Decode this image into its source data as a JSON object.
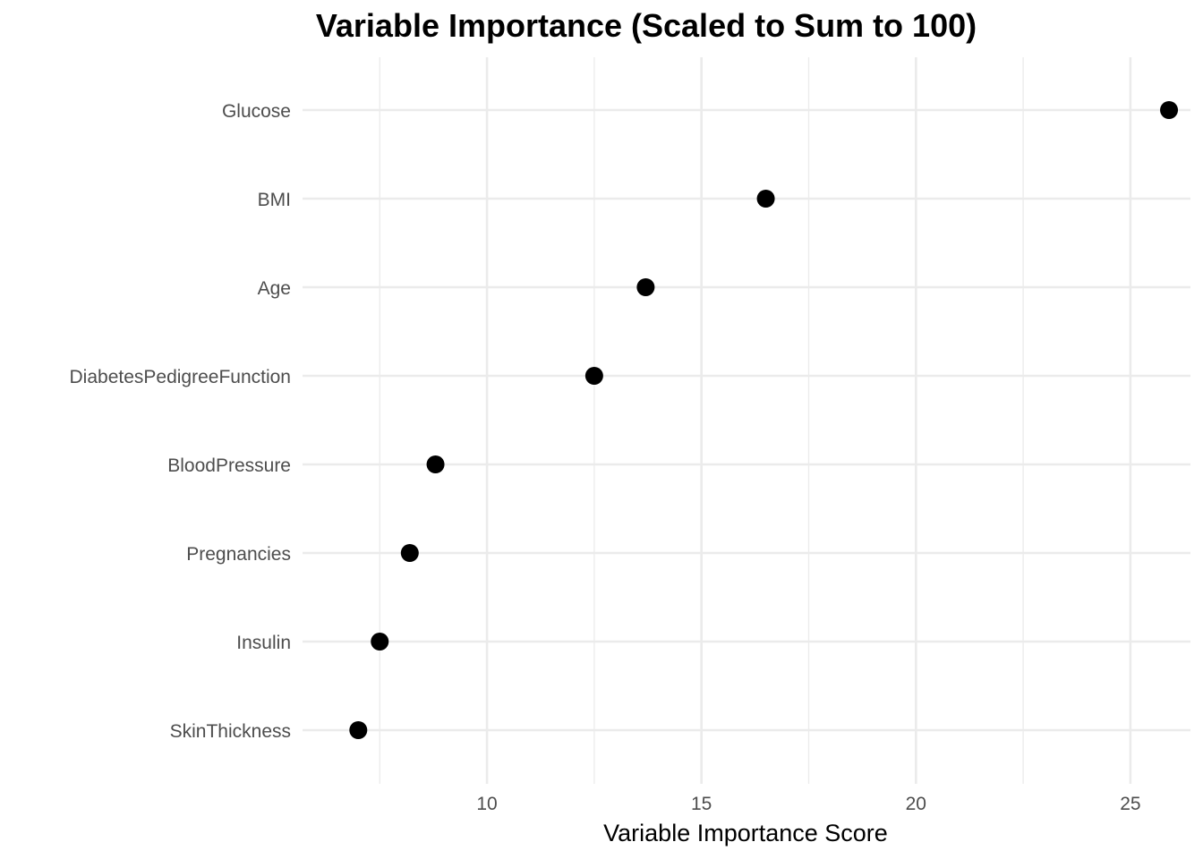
{
  "chart_data": {
    "type": "scatter",
    "title": "Variable Importance (Scaled to Sum to 100)",
    "xlabel": "Variable Importance Score",
    "ylabel": "",
    "categories": [
      "Glucose",
      "BMI",
      "Age",
      "DiabetesPedigreeFunction",
      "BloodPressure",
      "Pregnancies",
      "Insulin",
      "SkinThickness"
    ],
    "values": [
      25.9,
      16.5,
      13.7,
      12.5,
      8.8,
      8.2,
      7.5,
      7.0
    ],
    "xlim": [
      5.7,
      26.4
    ],
    "x_ticks": [
      10,
      15,
      20,
      25
    ],
    "grid": true,
    "point_color": "#000000",
    "grid_color": "#ebebeb"
  }
}
